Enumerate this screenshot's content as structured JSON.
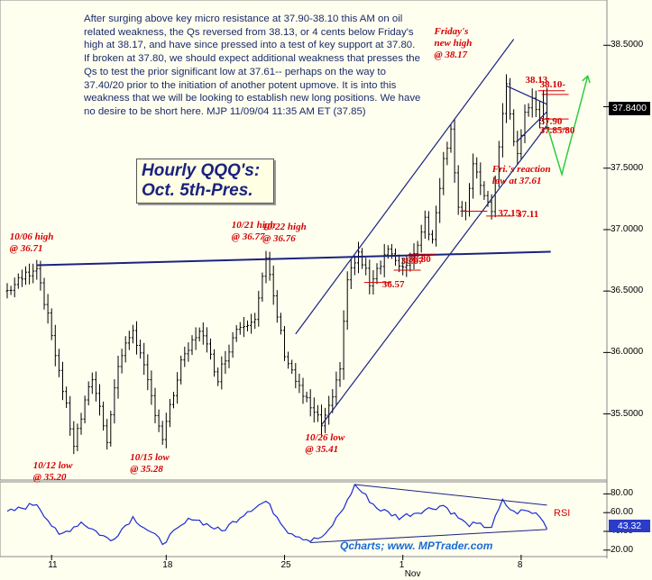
{
  "commentary": "After surging above key micro resistance at 37.90-38.10 this AM on oil related weakness, the Qs reversed from 38.13, or 4 cents below Friday's high at 38.17, and have since pressed into a test of key support at 37.80. If broken at 37.80, we should expect additional weakness that presses the Qs to test the prior significant low at 37.61-- perhaps on the way to 37.40/20 prior to the initiation of another potent upmove. It is into this weakness that we will be looking to establish new long positions. We have no desire to be short here. MJP  11/09/04 11:35 AM ET (37.85)",
  "colors": {
    "background": "#fffff0",
    "price_bars": "#000000",
    "annotation": "#d40000",
    "trendline": "#1a237e",
    "channel": "#1a237e",
    "projection": "#2ecc40",
    "rsi_line": "#1a2bd4"
  },
  "chart_data": [
    {
      "type": "bar",
      "panel": "price",
      "title_lines": [
        "Hourly QQQ's:",
        "Oct. 5th-Pres."
      ],
      "y_ticks": [
        35.5,
        36.0,
        36.5,
        37.0,
        37.5,
        38.0,
        38.5
      ],
      "y_tick_labels": [
        "35.5000",
        "36.0000",
        "36.5000",
        "37.0000",
        "37.5000",
        "38.0000",
        "38.5000"
      ],
      "ylim": [
        35.05,
        38.7
      ],
      "x_ticks": [
        {
          "label": "11",
          "bar": 12
        },
        {
          "label": "18",
          "bar": 43
        },
        {
          "label": "25",
          "bar": 75
        },
        {
          "label": "1",
          "bar": 107
        },
        {
          "label": "8",
          "bar": 139
        }
      ],
      "x_tick_sublabel": "Nov",
      "last_price_label": "37.8400",
      "last_price": 37.84,
      "bar_count": 147,
      "anchor_points": [
        {
          "bar": 0,
          "v": 36.5
        },
        {
          "bar": 8,
          "v": 36.71
        },
        {
          "bar": 13,
          "v": 36.0
        },
        {
          "bar": 18,
          "v": 35.25
        },
        {
          "bar": 23,
          "v": 35.8
        },
        {
          "bar": 27,
          "v": 35.3
        },
        {
          "bar": 30,
          "v": 35.9
        },
        {
          "bar": 34,
          "v": 36.2
        },
        {
          "bar": 42,
          "v": 35.3
        },
        {
          "bar": 47,
          "v": 35.9
        },
        {
          "bar": 52,
          "v": 36.2
        },
        {
          "bar": 57,
          "v": 35.8
        },
        {
          "bar": 62,
          "v": 36.2
        },
        {
          "bar": 67,
          "v": 36.3
        },
        {
          "bar": 70,
          "v": 36.75
        },
        {
          "bar": 75,
          "v": 36.0
        },
        {
          "bar": 79,
          "v": 35.7
        },
        {
          "bar": 83,
          "v": 35.5
        },
        {
          "bar": 85,
          "v": 35.41
        },
        {
          "bar": 88,
          "v": 35.6
        },
        {
          "bar": 90,
          "v": 35.9
        },
        {
          "bar": 92,
          "v": 36.6
        },
        {
          "bar": 95,
          "v": 36.8
        },
        {
          "bar": 98,
          "v": 36.57
        },
        {
          "bar": 103,
          "v": 36.85
        },
        {
          "bar": 106,
          "v": 36.67
        },
        {
          "bar": 110,
          "v": 36.8
        },
        {
          "bar": 113,
          "v": 37.1
        },
        {
          "bar": 115,
          "v": 36.9
        },
        {
          "bar": 118,
          "v": 37.6
        },
        {
          "bar": 120,
          "v": 37.8
        },
        {
          "bar": 122,
          "v": 37.2
        },
        {
          "bar": 124,
          "v": 37.15
        },
        {
          "bar": 126,
          "v": 37.5
        },
        {
          "bar": 129,
          "v": 37.3
        },
        {
          "bar": 131,
          "v": 37.11
        },
        {
          "bar": 133,
          "v": 37.7
        },
        {
          "bar": 135,
          "v": 38.17
        },
        {
          "bar": 137,
          "v": 37.7
        },
        {
          "bar": 138,
          "v": 37.61
        },
        {
          "bar": 140,
          "v": 37.95
        },
        {
          "bar": 142,
          "v": 38.05
        },
        {
          "bar": 144,
          "v": 37.9
        },
        {
          "bar": 145,
          "v": 38.13
        },
        {
          "bar": 146,
          "v": 37.84
        }
      ],
      "annotations": [
        {
          "lines": [
            "10/06 high",
            "@ 36.71"
          ],
          "bar": 8,
          "v": 36.71
        },
        {
          "lines": [
            "10/12 low",
            "@ 35.20"
          ],
          "bar": 18,
          "v": 35.2
        },
        {
          "lines": [
            "10/15 low",
            "@ 35.28"
          ],
          "bar": 42,
          "v": 35.28
        },
        {
          "lines": [
            "10/21 high",
            "@ 36.77"
          ],
          "bar": 68,
          "v": 36.77
        },
        {
          "lines": [
            "10/22 high",
            "@ 36.76"
          ],
          "bar": 71,
          "v": 36.76
        },
        {
          "lines": [
            "10/26 low",
            "@ 35.41"
          ],
          "bar": 85,
          "v": 35.41
        },
        {
          "lines": [
            "Friday's",
            "new high",
            "@ 38.17"
          ],
          "bar": 135,
          "v": 38.17
        },
        {
          "lines": [
            "Fri.'s reaction",
            "low at 37.61"
          ],
          "bar": 138,
          "v": 37.61
        }
      ],
      "levels": [
        {
          "label": "36.57",
          "bar": 98,
          "v": 36.57
        },
        {
          "label": "36.67",
          "bar": 106,
          "v": 36.67
        },
        {
          "label": "36.80",
          "bar": 110,
          "v": 36.8
        },
        {
          "label": "37.11",
          "bar": 131,
          "v": 37.11
        },
        {
          "label": "37.15",
          "bar": 124,
          "v": 37.15
        },
        {
          "label": "38.13",
          "bar": 145,
          "v": 38.13
        },
        {
          "label": "38.10-",
          "bar": 146,
          "v": 38.1
        },
        {
          "label": "37.90",
          "bar": 146,
          "v": 37.9
        },
        {
          "label": "37.85/80",
          "bar": 146,
          "v": 37.82
        }
      ],
      "trendlines": [
        {
          "kind": "horizontal",
          "from": {
            "bar": 8,
            "v": 36.71
          },
          "to": {
            "bar": 147,
            "v": 36.82
          }
        },
        {
          "kind": "channel-lower",
          "from": {
            "bar": 85,
            "v": 35.41
          },
          "to": {
            "bar": 146,
            "v": 37.85
          }
        },
        {
          "kind": "channel-upper",
          "from": {
            "bar": 78,
            "v": 36.15
          },
          "to": {
            "bar": 137,
            "v": 38.55
          }
        },
        {
          "kind": "wedge-top",
          "from": {
            "bar": 135,
            "v": 38.17
          },
          "to": {
            "bar": 146,
            "v": 38.02
          }
        },
        {
          "kind": "wedge-bottom",
          "from": {
            "bar": 138,
            "v": 37.72
          },
          "to": {
            "bar": 146,
            "v": 37.96
          }
        }
      ],
      "projection": [
        {
          "bar": 146,
          "v": 37.85
        },
        {
          "bar": 150,
          "v": 37.45
        },
        {
          "bar": 157,
          "v": 38.25
        }
      ]
    },
    {
      "type": "line",
      "panel": "rsi",
      "series_label": "RSI",
      "y_ticks": [
        20,
        40,
        60,
        80
      ],
      "y_tick_labels": [
        "20.00",
        "40.00",
        "60.00",
        "80.00"
      ],
      "ylim": [
        15,
        90
      ],
      "last_value_label": "43.32",
      "anchor_points": [
        {
          "bar": 0,
          "v": 60
        },
        {
          "bar": 8,
          "v": 70
        },
        {
          "bar": 14,
          "v": 35
        },
        {
          "bar": 20,
          "v": 50
        },
        {
          "bar": 28,
          "v": 30
        },
        {
          "bar": 34,
          "v": 55
        },
        {
          "bar": 42,
          "v": 28
        },
        {
          "bar": 50,
          "v": 55
        },
        {
          "bar": 58,
          "v": 40
        },
        {
          "bar": 65,
          "v": 62
        },
        {
          "bar": 70,
          "v": 72
        },
        {
          "bar": 76,
          "v": 40
        },
        {
          "bar": 82,
          "v": 30
        },
        {
          "bar": 86,
          "v": 35
        },
        {
          "bar": 92,
          "v": 72
        },
        {
          "bar": 94,
          "v": 90
        },
        {
          "bar": 100,
          "v": 65
        },
        {
          "bar": 106,
          "v": 55
        },
        {
          "bar": 112,
          "v": 62
        },
        {
          "bar": 118,
          "v": 68
        },
        {
          "bar": 124,
          "v": 48
        },
        {
          "bar": 131,
          "v": 45
        },
        {
          "bar": 134,
          "v": 72
        },
        {
          "bar": 137,
          "v": 60
        },
        {
          "bar": 140,
          "v": 62
        },
        {
          "bar": 144,
          "v": 58
        },
        {
          "bar": 146,
          "v": 43.32
        }
      ],
      "trendlines": [
        {
          "from": {
            "bar": 94,
            "v": 90
          },
          "to": {
            "bar": 146,
            "v": 68
          }
        },
        {
          "from": {
            "bar": 82,
            "v": 28
          },
          "to": {
            "bar": 146,
            "v": 42
          }
        }
      ]
    }
  ],
  "credit": "Qcharts; www. MPTrader.com"
}
